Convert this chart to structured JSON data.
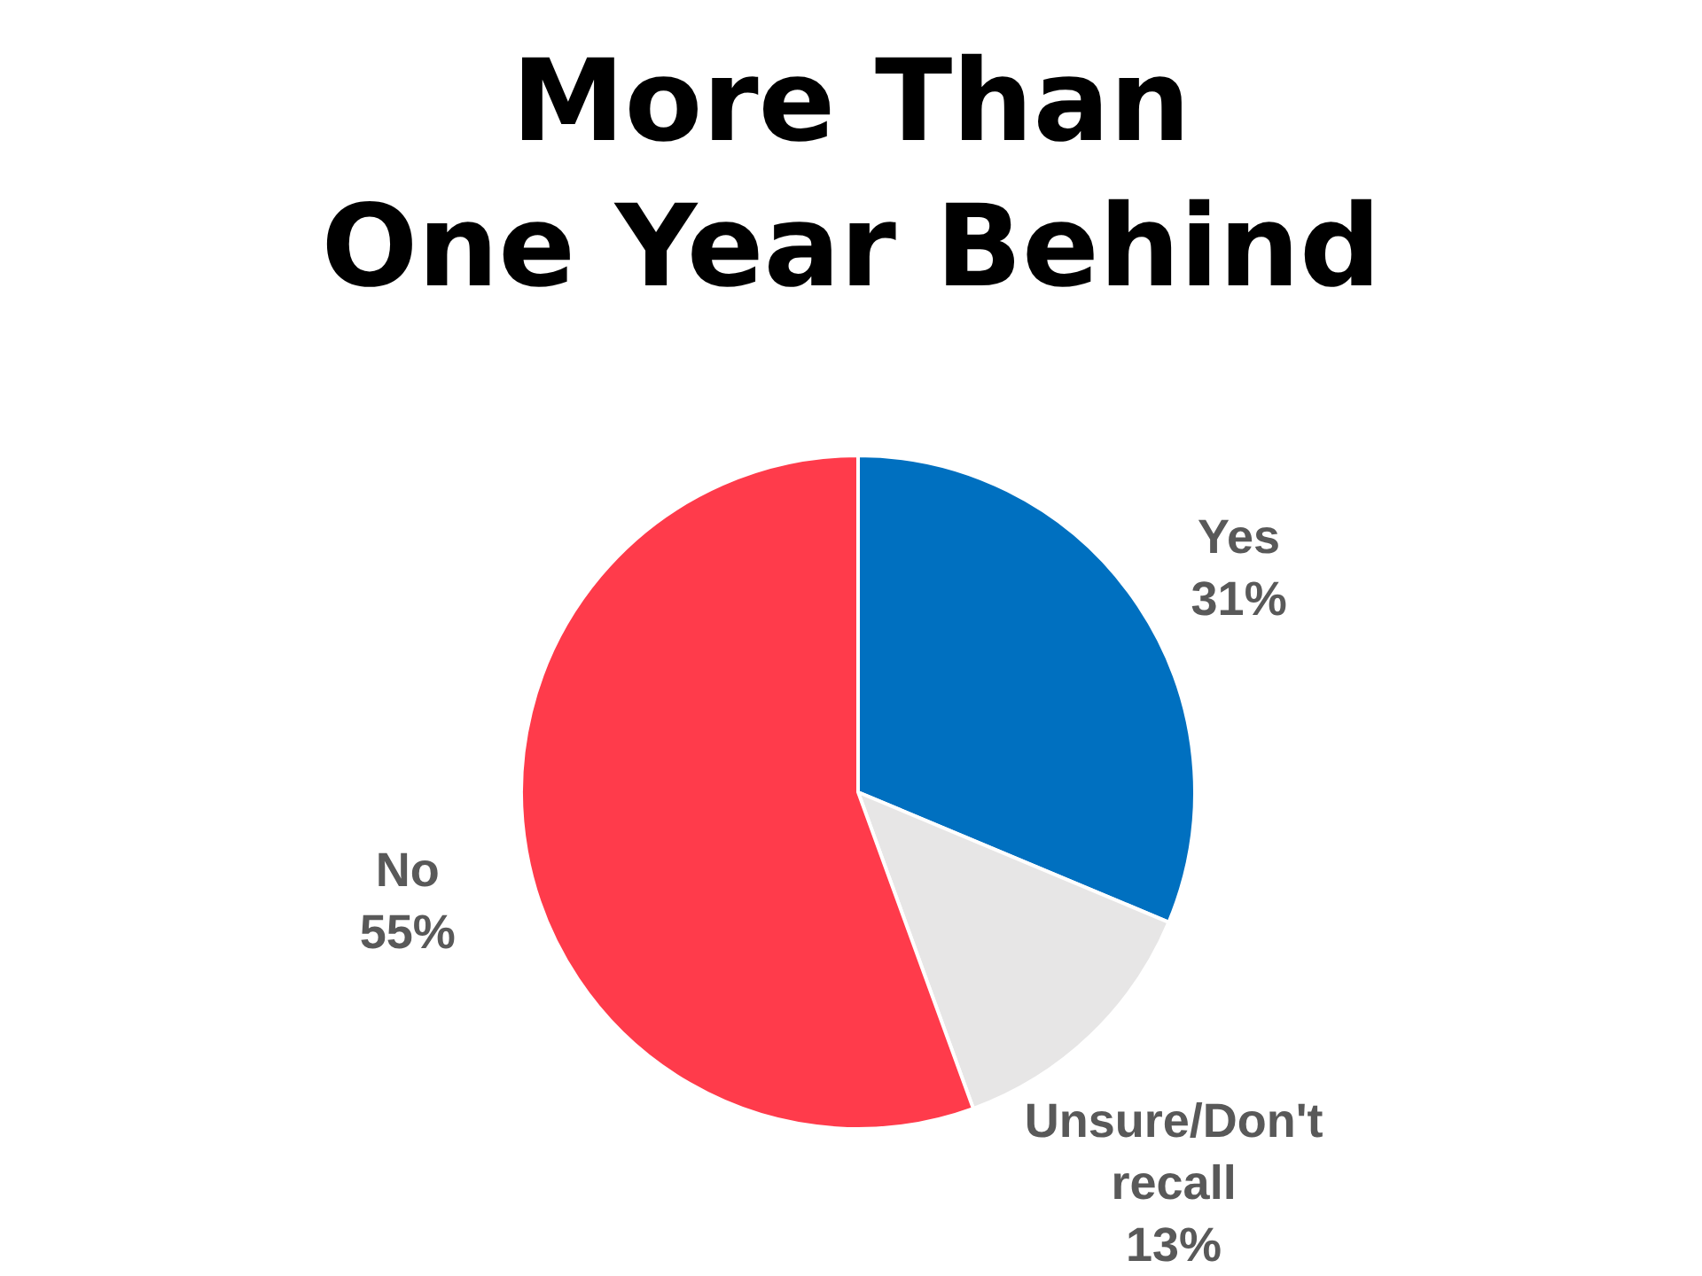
{
  "chart_data": {
    "type": "pie",
    "title": "More Than One Year Behind",
    "categories": [
      "Yes",
      "Unsure/Don't recall",
      "No"
    ],
    "values": [
      31,
      13,
      55
    ],
    "value_labels": [
      "31%",
      "13%",
      "55%"
    ],
    "colors": [
      "#0070c0",
      "#e7e6e6",
      "#ff3b4b"
    ]
  }
}
